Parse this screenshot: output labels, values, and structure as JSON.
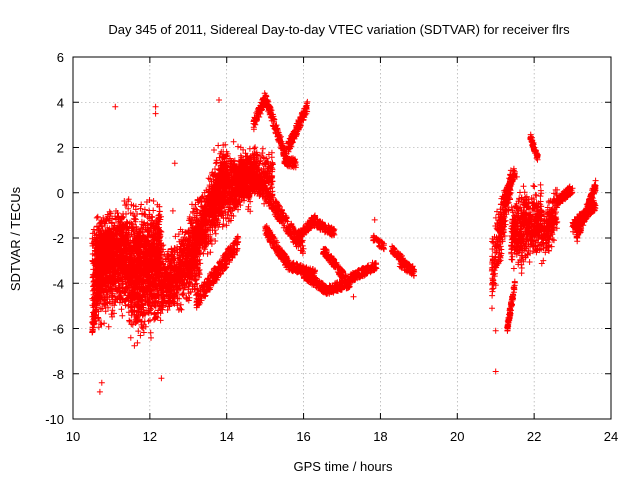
{
  "chart_data": {
    "type": "scatter",
    "title": "Day 345 of 2011, Sidereal Day-to-day VTEC variation (SDTVAR) for receiver flrs",
    "xlabel": "GPS time / hours",
    "ylabel": "SDTVAR / TECUs",
    "xlim": [
      10,
      24
    ],
    "ylim": [
      -10,
      6
    ],
    "xticks": [
      "10",
      "12",
      "14",
      "16",
      "18",
      "20",
      "22",
      "24"
    ],
    "yticks": [
      "6",
      "4",
      "2",
      "0",
      "-2",
      "-4",
      "-6",
      "-8",
      "-10"
    ],
    "grid": true,
    "marker": "+",
    "series_color": "#ff0000",
    "series": [
      {
        "name": "SDTVAR",
        "clusters": [
          {
            "x": [
              10.5,
              12.3
            ],
            "center": [
              -3.6,
              -2.5
            ],
            "spread": [
              2.2,
              2.0
            ],
            "n": 1400
          },
          {
            "x": [
              10.6,
              11.4
            ],
            "center": [
              -2.8,
              -2.4
            ],
            "spread": [
              1.4,
              1.2
            ],
            "n": 500
          },
          {
            "x": [
              11.5,
              12.3
            ],
            "center": [
              -4.5,
              -3.5
            ],
            "spread": [
              2.0,
              2.0
            ],
            "n": 500
          },
          {
            "x": [
              12.3,
              13.3
            ],
            "center": [
              -4.2,
              -2.6
            ],
            "spread": [
              1.4,
              1.4
            ],
            "n": 650
          },
          {
            "x": [
              13.0,
              14.0
            ],
            "center": [
              -2.8,
              0.8
            ],
            "spread": [
              1.6,
              1.2
            ],
            "n": 650
          },
          {
            "x": [
              13.6,
              14.8
            ],
            "center": [
              -0.3,
              1.2
            ],
            "spread": [
              1.6,
              0.9
            ],
            "n": 650
          },
          {
            "x": [
              14.2,
              15.2
            ],
            "center": [
              0.2,
              0.8
            ],
            "spread": [
              0.9,
              1.0
            ],
            "n": 350
          },
          {
            "x": [
              20.9,
              21.4
            ],
            "center": [
              -3.5,
              0.5
            ],
            "spread": [
              1.6,
              0.6
            ],
            "n": 250
          },
          {
            "x": [
              21.4,
              22.2
            ],
            "center": [
              -1.8,
              -1.2
            ],
            "spread": [
              1.4,
              1.4
            ],
            "n": 500
          },
          {
            "x": [
              22.2,
              22.6
            ],
            "center": [
              -2.2,
              -0.6
            ],
            "spread": [
              1.0,
              1.0
            ],
            "n": 180
          }
        ],
        "traces": [
          {
            "x": [
              10.5,
              10.9
            ],
            "y": [
              -6.0,
              -2.5
            ],
            "w": 0.5,
            "n": 150
          },
          {
            "x": [
              13.2,
              14.3
            ],
            "y": [
              -4.8,
              -2.2
            ],
            "w": 0.7,
            "n": 260
          },
          {
            "x": [
              14.7,
              15.0
            ],
            "y": [
              3.0,
              4.2
            ],
            "w": 0.5,
            "n": 80
          },
          {
            "x": [
              15.0,
              15.6
            ],
            "y": [
              4.2,
              1.3
            ],
            "w": 0.5,
            "n": 150
          },
          {
            "x": [
              15.5,
              15.8
            ],
            "y": [
              1.4,
              1.3
            ],
            "w": 0.4,
            "n": 60
          },
          {
            "x": [
              15.6,
              16.1
            ],
            "y": [
              2.0,
              3.8
            ],
            "w": 0.5,
            "n": 130
          },
          {
            "x": [
              15.0,
              15.6
            ],
            "y": [
              -1.6,
              -3.2
            ],
            "w": 0.5,
            "n": 150
          },
          {
            "x": [
              14.8,
              16.0
            ],
            "y": [
              0.5,
              -2.5
            ],
            "w": 0.7,
            "n": 260
          },
          {
            "x": [
              15.6,
              16.3
            ],
            "y": [
              -3.2,
              -3.6
            ],
            "w": 0.4,
            "n": 150
          },
          {
            "x": [
              16.0,
              16.6
            ],
            "y": [
              -3.6,
              -4.3
            ],
            "w": 0.4,
            "n": 150
          },
          {
            "x": [
              15.8,
              16.3
            ],
            "y": [
              -2.0,
              -1.2
            ],
            "w": 0.4,
            "n": 120
          },
          {
            "x": [
              16.2,
              16.8
            ],
            "y": [
              -1.2,
              -1.8
            ],
            "w": 0.4,
            "n": 120
          },
          {
            "x": [
              16.6,
              17.2
            ],
            "y": [
              -4.3,
              -4.0
            ],
            "w": 0.4,
            "n": 120
          },
          {
            "x": [
              16.5,
              17.1
            ],
            "y": [
              -2.5,
              -3.8
            ],
            "w": 0.4,
            "n": 120
          },
          {
            "x": [
              17.2,
              17.9
            ],
            "y": [
              -3.8,
              -3.2
            ],
            "w": 0.4,
            "n": 130
          },
          {
            "x": [
              17.8,
              18.1
            ],
            "y": [
              -2.0,
              -2.4
            ],
            "w": 0.3,
            "n": 40
          },
          {
            "x": [
              18.3,
              18.6
            ],
            "y": [
              -2.5,
              -3.0
            ],
            "w": 0.3,
            "n": 60
          },
          {
            "x": [
              18.5,
              18.9
            ],
            "y": [
              -3.1,
              -3.5
            ],
            "w": 0.4,
            "n": 80
          },
          {
            "x": [
              21.2,
              21.5
            ],
            "y": [
              -0.5,
              1.0
            ],
            "w": 0.4,
            "n": 90
          },
          {
            "x": [
              21.3,
              21.5
            ],
            "y": [
              -6.0,
              -4.0
            ],
            "w": 0.4,
            "n": 80
          },
          {
            "x": [
              21.9,
              22.1
            ],
            "y": [
              2.5,
              1.5
            ],
            "w": 0.3,
            "n": 60
          },
          {
            "x": [
              22.6,
              23.0
            ],
            "y": [
              -0.4,
              0.2
            ],
            "w": 0.4,
            "n": 100
          },
          {
            "x": [
              23.0,
              23.6
            ],
            "y": [
              -1.5,
              -0.5
            ],
            "w": 0.5,
            "n": 180
          },
          {
            "x": [
              23.1,
              23.6
            ],
            "y": [
              -2.0,
              0.3
            ],
            "w": 0.5,
            "n": 180
          }
        ],
        "outliers": [
          [
            11.1,
            3.8
          ],
          [
            12.15,
            3.8
          ],
          [
            12.15,
            3.5
          ],
          [
            13.8,
            4.1
          ],
          [
            12.65,
            1.3
          ],
          [
            12.6,
            -0.8
          ],
          [
            17.3,
            -4.6
          ],
          [
            17.85,
            -1.2
          ],
          [
            21.0,
            -7.9
          ],
          [
            21.55,
            0.7
          ],
          [
            21.0,
            -6.1
          ],
          [
            10.7,
            -8.8
          ],
          [
            10.75,
            -8.4
          ],
          [
            12.3,
            -8.2
          ],
          [
            21.1,
            -1.2
          ]
        ]
      }
    ]
  }
}
